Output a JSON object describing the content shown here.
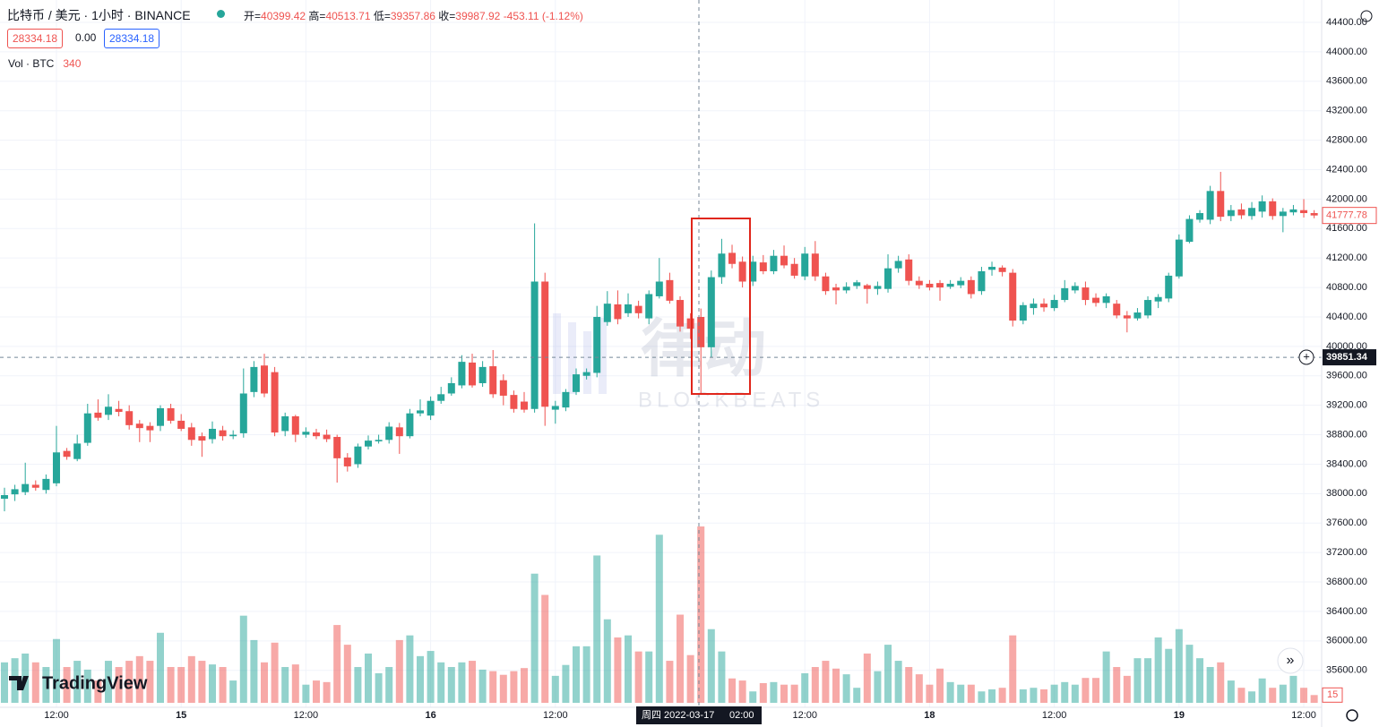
{
  "chart_data": {
    "type": "candlestick",
    "title": "比特币 / 美元 · 1小时 · BINANCE",
    "ohlc_labels": [
      "开=",
      "高=",
      "低=",
      "收="
    ],
    "change": -453.11,
    "change_pct_label": "(-1.12%)",
    "price_boxes": [
      "28334.18",
      "0.00",
      "28334.18"
    ],
    "volume_label": "Vol · BTC",
    "up_color": "#26a69a",
    "down_color": "#ef5350",
    "categories": [
      null,
      null,
      null,
      null,
      null,
      null,
      null,
      null,
      null,
      null,
      null,
      null,
      null,
      null,
      null,
      null,
      null,
      null,
      null,
      null,
      null,
      null,
      null,
      null,
      null,
      null,
      null,
      null,
      null,
      null,
      null,
      null,
      null,
      null,
      null,
      null,
      null,
      null,
      null,
      null,
      null,
      null,
      null,
      null,
      null,
      null,
      null,
      null,
      null,
      null,
      null,
      null,
      null,
      null,
      null,
      null,
      null,
      null,
      null,
      null,
      null,
      null,
      null,
      null,
      null,
      null,
      null,
      null,
      null,
      null,
      null,
      null,
      null,
      null,
      null,
      null,
      null,
      null,
      null,
      null,
      null,
      null,
      null,
      null,
      null,
      null,
      null,
      null,
      null,
      null,
      null,
      null,
      null,
      null,
      null,
      null,
      null,
      null,
      null,
      null,
      null,
      null,
      null,
      null,
      null,
      null,
      null,
      null,
      null,
      null,
      null,
      null,
      null,
      null,
      null,
      null,
      null,
      null,
      null,
      null,
      null,
      null,
      null,
      null,
      null,
      null,
      null
    ],
    "open": [
      37930,
      37990,
      38020,
      38120,
      38050,
      38140,
      38580,
      38470,
      38690,
      39100,
      39070,
      39150,
      39120,
      38950,
      38920,
      38920,
      39160,
      38990,
      38900,
      38780,
      38740,
      38860,
      38780,
      38820,
      39380,
      39740,
      39650,
      38850,
      39050,
      38800,
      38830,
      38800,
      38770,
      38490,
      38400,
      38640,
      38710,
      38730,
      38900,
      38780,
      39090,
      39060,
      39260,
      39360,
      39470,
      39780,
      39500,
      39730,
      39540,
      39340,
      39250,
      39150,
      40880,
      39140,
      39170,
      39380,
      39600,
      39640,
      40330,
      40570,
      40450,
      40550,
      40380,
      40680,
      40900,
      40630,
      40380,
      40399.42,
      39987.92,
      40940,
      41270,
      41150,
      40880,
      41140,
      41020,
      41230,
      41120,
      40950,
      41260,
      40950,
      40800,
      40760,
      40820,
      40830,
      40780,
      40780,
      41060,
      41180,
      40890,
      40850,
      40860,
      40810,
      40830,
      40900,
      40750,
      41040,
      41070,
      41000,
      40350,
      40520,
      40580,
      40520,
      40630,
      40760,
      40800,
      40660,
      40590,
      40580,
      40420,
      40380,
      40420,
      40610,
      40650,
      40950,
      41420,
      41720,
      41720,
      42110,
      41770,
      41860,
      41770,
      41830,
      41970,
      41770,
      41820,
      41850,
      41810
    ],
    "high": [
      38080,
      38120,
      38420,
      38180,
      38260,
      38920,
      38620,
      38800,
      39220,
      39280,
      39350,
      39260,
      39200,
      39000,
      38970,
      39200,
      39220,
      39080,
      38960,
      38830,
      38980,
      38920,
      38860,
      39700,
      39800,
      39900,
      39720,
      39100,
      39070,
      38900,
      38880,
      38870,
      38800,
      38550,
      38680,
      38790,
      38800,
      38970,
      38960,
      39150,
      39280,
      39320,
      39450,
      39580,
      39880,
      39900,
      39800,
      39950,
      39620,
      39400,
      39380,
      41670,
      41000,
      39260,
      39420,
      39700,
      39700,
      40550,
      40750,
      40760,
      40720,
      40620,
      40760,
      41200,
      41000,
      40680,
      40450,
      40513.71,
      41030,
      41460,
      41380,
      41220,
      41230,
      41240,
      41310,
      41370,
      41200,
      41350,
      41430,
      41000,
      40850,
      40870,
      40900,
      40850,
      40880,
      41250,
      41230,
      41250,
      40950,
      40900,
      40900,
      40900,
      40940,
      40950,
      41080,
      41150,
      41100,
      41050,
      40600,
      40650,
      40650,
      40700,
      40900,
      40870,
      40880,
      40720,
      40720,
      40630,
      40480,
      40520,
      40680,
      40710,
      41000,
      41520,
      41780,
      41850,
      42180,
      42370,
      41920,
      41940,
      41960,
      42050,
      42010,
      41880,
      41920,
      42000,
      41850
    ],
    "low": [
      37760,
      37900,
      37980,
      38040,
      38000,
      38100,
      38460,
      38440,
      38650,
      38990,
      39000,
      39050,
      38870,
      38700,
      38700,
      38850,
      38950,
      38850,
      38650,
      38500,
      38680,
      38720,
      38740,
      38760,
      39310,
      39310,
      38780,
      38780,
      38700,
      38760,
      38740,
      38700,
      38150,
      38300,
      38350,
      38600,
      38680,
      38680,
      38540,
      38750,
      39050,
      39000,
      39220,
      39330,
      39430,
      39440,
      39450,
      39300,
      39200,
      39100,
      39100,
      39100,
      38920,
      38950,
      39120,
      39340,
      39550,
      39580,
      40280,
      40300,
      40400,
      40380,
      40300,
      40650,
      40580,
      40200,
      40100,
      39357.86,
      39850,
      40850,
      41060,
      40800,
      40820,
      40980,
      40980,
      41060,
      40920,
      40900,
      40890,
      40700,
      40570,
      40720,
      40780,
      40580,
      40700,
      40730,
      41000,
      40830,
      40780,
      40760,
      40620,
      40780,
      40790,
      40650,
      40700,
      40960,
      40950,
      40270,
      40300,
      40430,
      40470,
      40480,
      40600,
      40720,
      40560,
      40540,
      40520,
      40380,
      40190,
      40350,
      40380,
      40520,
      40600,
      40920,
      41400,
      41680,
      41660,
      41700,
      41700,
      41730,
      41720,
      41750,
      41720,
      41550,
      41780,
      41750,
      41740
    ],
    "close": [
      37980,
      38060,
      38130,
      38080,
      38200,
      38560,
      38500,
      38680,
      39090,
      39030,
      39180,
      39110,
      38930,
      38890,
      38860,
      39160,
      38990,
      38880,
      38730,
      38720,
      38880,
      38780,
      38800,
      39360,
      39720,
      39360,
      38830,
      39050,
      38800,
      38840,
      38780,
      38740,
      38480,
      38370,
      38640,
      38720,
      38730,
      38910,
      38780,
      39090,
      39130,
      39260,
      39350,
      39500,
      39790,
      39470,
      39720,
      39350,
      39330,
      39150,
      39140,
      40880,
      39180,
      39190,
      39380,
      39620,
      39650,
      40400,
      40580,
      40370,
      40570,
      40450,
      40710,
      40880,
      40620,
      40270,
      40240,
      39987.92,
      40940,
      41260,
      41120,
      40880,
      41150,
      41020,
      41230,
      41100,
      40960,
      41260,
      40950,
      40750,
      40760,
      40810,
      40870,
      40780,
      40820,
      41060,
      41160,
      40890,
      40830,
      40800,
      40800,
      40850,
      40890,
      40710,
      41020,
      41080,
      41010,
      40350,
      40560,
      40580,
      40530,
      40630,
      40790,
      40820,
      40630,
      40590,
      40680,
      40420,
      40380,
      40460,
      40630,
      40670,
      40960,
      41450,
      41730,
      41810,
      42110,
      41760,
      41850,
      41780,
      41880,
      41970,
      41770,
      41830,
      41860,
      41810,
      41777.78
    ],
    "volume": [
      78,
      86,
      95,
      78,
      69,
      123,
      69,
      81,
      64,
      43,
      81,
      69,
      81,
      90,
      81,
      135,
      69,
      69,
      90,
      81,
      74,
      69,
      43,
      168,
      121,
      78,
      116,
      69,
      74,
      35,
      43,
      40,
      150,
      112,
      69,
      95,
      57,
      69,
      121,
      130,
      90,
      100,
      78,
      69,
      78,
      81,
      64,
      61,
      54,
      61,
      67,
      249,
      208,
      52,
      73,
      109,
      109,
      284,
      161,
      126,
      130,
      99,
      99,
      324,
      81,
      170,
      92,
      340,
      142,
      99,
      47,
      43,
      22,
      38,
      40,
      35,
      35,
      57,
      69,
      81,
      66,
      55,
      29,
      95,
      61,
      112,
      81,
      69,
      55,
      35,
      66,
      40,
      35,
      35,
      22,
      26,
      29,
      130,
      26,
      29,
      26,
      35,
      40,
      35,
      48,
      48,
      99,
      69,
      52,
      86,
      86,
      126,
      104,
      142,
      112,
      86,
      69,
      78,
      43,
      29,
      22,
      47,
      29,
      35,
      52,
      29,
      15
    ],
    "xlim": [
      -0.43,
      126.72
    ],
    "xticks": [
      {
        "value": 5,
        "label": "12:00"
      },
      {
        "value": 17,
        "label": "15"
      },
      {
        "value": 29,
        "label": "12:00"
      },
      {
        "value": 41,
        "label": "16"
      },
      {
        "value": 53,
        "label": "12:00"
      },
      {
        "value": 77,
        "label": "12:00"
      },
      {
        "value": 89,
        "label": "18"
      },
      {
        "value": 101,
        "label": "12:00"
      },
      {
        "value": 113,
        "label": "19"
      },
      {
        "value": 125,
        "label": "12:00"
      }
    ],
    "ylim": [
      35098,
      44704
    ],
    "yticks": [
      {
        "value": 35600,
        "label": "35600.00"
      },
      {
        "value": 36000,
        "label": "36000.00"
      },
      {
        "value": 36400,
        "label": "36400.00"
      },
      {
        "value": 36800,
        "label": "36800.00"
      },
      {
        "value": 37200,
        "label": "37200.00"
      },
      {
        "value": 37600,
        "label": "37600.00"
      },
      {
        "value": 38000,
        "label": "38000.00"
      },
      {
        "value": 38400,
        "label": "38400.00"
      },
      {
        "value": 38800,
        "label": "38800.00"
      },
      {
        "value": 39200,
        "label": "39200.00"
      },
      {
        "value": 39600,
        "label": "39600.00"
      },
      {
        "value": 40000,
        "label": "40000.00"
      },
      {
        "value": 40400,
        "label": "40400.00"
      },
      {
        "value": 40800,
        "label": "40800.00"
      },
      {
        "value": 41200,
        "label": "41200.00"
      },
      {
        "value": 41600,
        "label": "41600.00"
      },
      {
        "value": 42000,
        "label": "42000.00"
      },
      {
        "value": 42400,
        "label": "42400.00"
      },
      {
        "value": 42800,
        "label": "42800.00"
      },
      {
        "value": 43200,
        "label": "43200.00"
      },
      {
        "value": 43600,
        "label": "43600.00"
      },
      {
        "value": 44000,
        "label": "44000.00"
      },
      {
        "value": 44400,
        "label": "44400.00"
      }
    ],
    "grid": true,
    "crosshair": {
      "price": 39851.34,
      "date_label": "周四 2022-03-17",
      "time_label": "02:00"
    },
    "watermark": "律动",
    "watermark_sub": "BLOCKBEATS",
    "logo": "TradingView"
  }
}
